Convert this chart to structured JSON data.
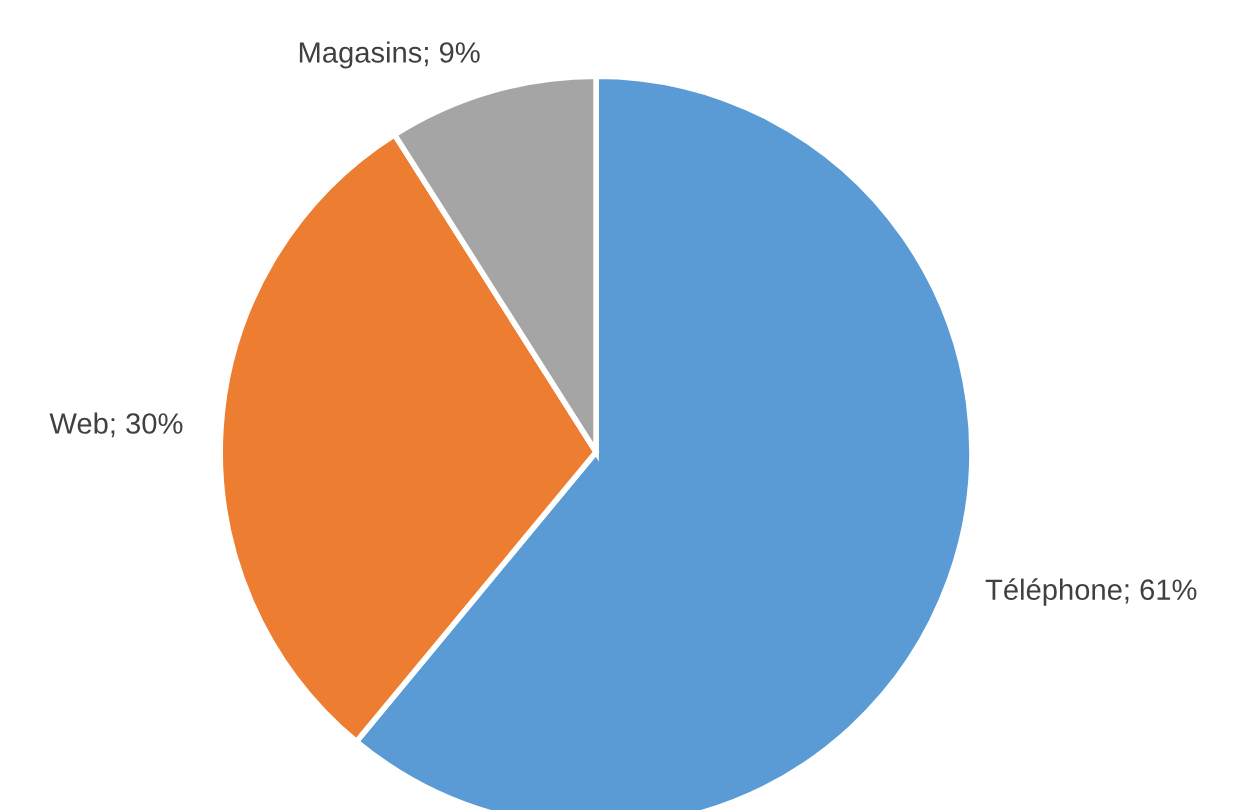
{
  "chart_data": {
    "type": "pie",
    "categories": [
      "Téléphone",
      "Web",
      "Magasins"
    ],
    "values": [
      61,
      30,
      9
    ],
    "value_labels": [
      "61%",
      "30%",
      "9%"
    ],
    "colors": [
      "#5b9bd5",
      "#ed7d31",
      "#a5a5a5"
    ],
    "legend": false
  }
}
